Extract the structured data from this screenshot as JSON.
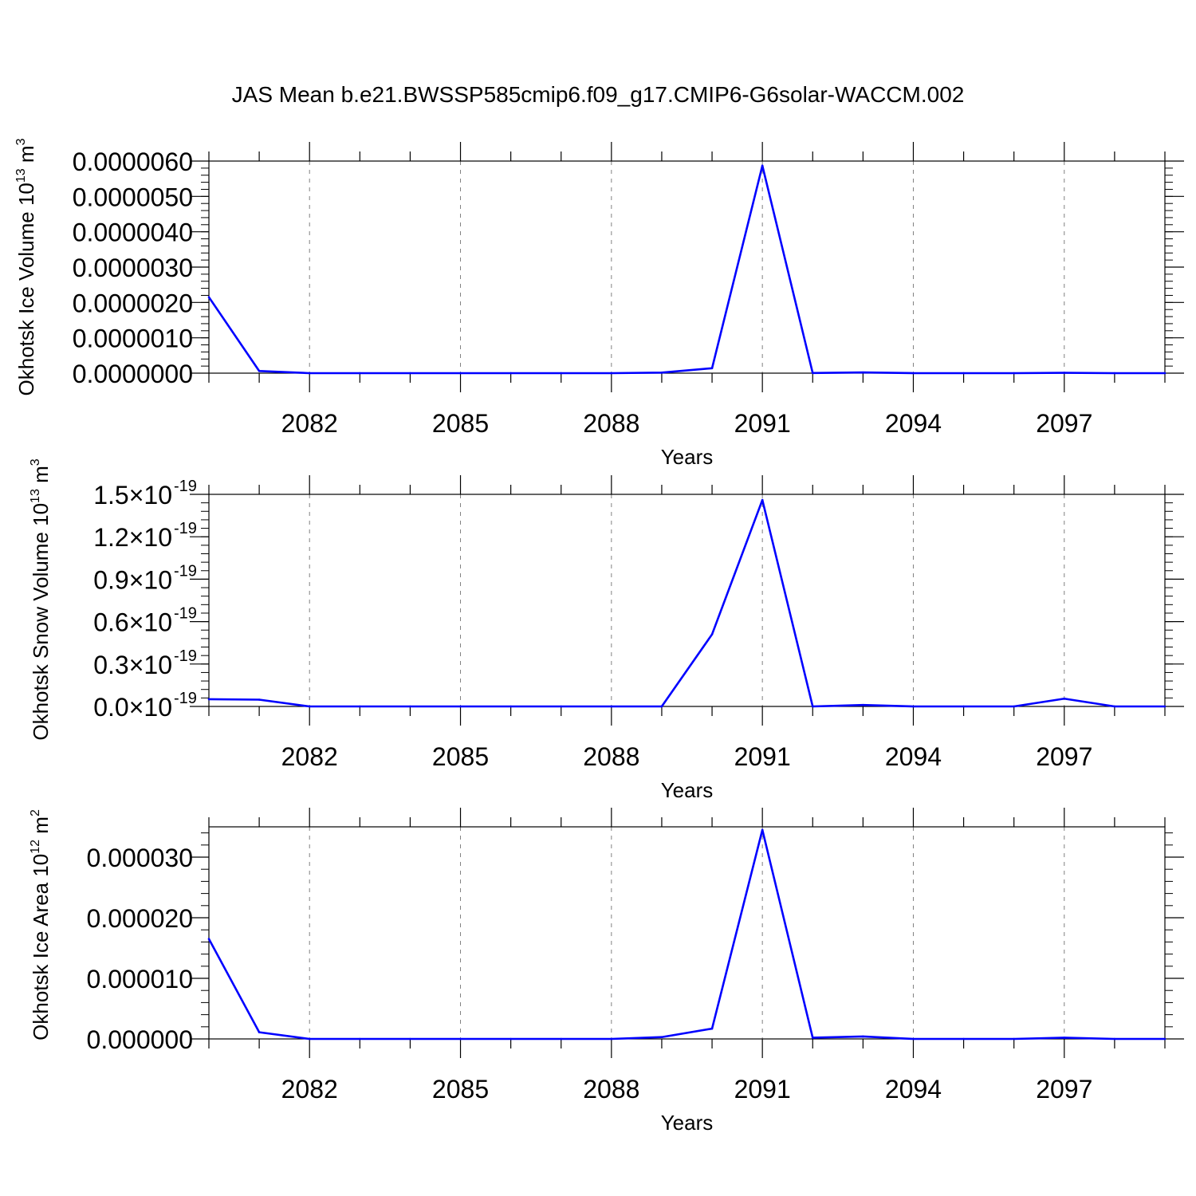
{
  "title": "JAS Mean b.e21.BWSSP585cmip6.f09_g17.CMIP6-G6solar-WACCM.002",
  "colors": {
    "line": "#0000ff",
    "axis": "#000000",
    "grid": "#808080",
    "background": "#ffffff"
  },
  "chart_data": [
    {
      "type": "line",
      "xlabel": "Years",
      "ylabel": {
        "text": "Okhotsk Ice Volume 10",
        "exponent": "13",
        "unit": " m",
        "unit_exponent": "3"
      },
      "xlim": [
        2080,
        2099
      ],
      "ylim": [
        0,
        6e-06
      ],
      "xticks": [
        "2082",
        "2085",
        "2088",
        "2091",
        "2094",
        "2097"
      ],
      "yticks": [
        {
          "value": 0.0,
          "label": "0.0000000"
        },
        {
          "value": 1e-06,
          "label": "0.0000010"
        },
        {
          "value": 2e-06,
          "label": "0.0000020"
        },
        {
          "value": 3e-06,
          "label": "0.0000030"
        },
        {
          "value": 4e-06,
          "label": "0.0000040"
        },
        {
          "value": 5e-06,
          "label": "0.0000050"
        },
        {
          "value": 6e-06,
          "label": "0.0000060"
        }
      ],
      "grid": "vertical dashed at major x ticks",
      "x": [
        2080,
        2081,
        2082,
        2083,
        2084,
        2085,
        2086,
        2087,
        2088,
        2089,
        2090,
        2091,
        2092,
        2093,
        2094,
        2095,
        2096,
        2097,
        2098,
        2099
      ],
      "values": [
        2.15e-06,
        6e-08,
        0.0,
        0.0,
        0.0,
        0.0,
        0.0,
        0.0,
        0.0,
        1.5e-08,
        1.4e-07,
        5.87e-06,
        5e-09,
        2e-08,
        0.0,
        0.0,
        0.0,
        1e-08,
        0.0,
        0.0
      ]
    },
    {
      "type": "line",
      "xlabel": "Years",
      "ylabel": {
        "text": "Okhotsk Snow Volume 10",
        "exponent": "13",
        "unit": " m",
        "unit_exponent": "3"
      },
      "xlim": [
        2080,
        2099
      ],
      "ylim": [
        0,
        1.5e-19
      ],
      "xticks": [
        "2082",
        "2085",
        "2088",
        "2091",
        "2094",
        "2097"
      ],
      "yticks": [
        {
          "value": 0.0,
          "mantissa": "0.0",
          "times": "×",
          "base": "10",
          "exponent": "-19"
        },
        {
          "value": 3e-20,
          "mantissa": "0.3",
          "times": "×",
          "base": "10",
          "exponent": "-19"
        },
        {
          "value": 6e-20,
          "mantissa": "0.6",
          "times": "×",
          "base": "10",
          "exponent": "-19"
        },
        {
          "value": 9e-20,
          "mantissa": "0.9",
          "times": "×",
          "base": "10",
          "exponent": "-19"
        },
        {
          "value": 1.2e-19,
          "mantissa": "1.2",
          "times": "×",
          "base": "10",
          "exponent": "-19"
        },
        {
          "value": 1.5e-19,
          "mantissa": "1.5",
          "times": "×",
          "base": "10",
          "exponent": "-19"
        }
      ],
      "grid": "vertical dashed at major x ticks",
      "x": [
        2080,
        2081,
        2082,
        2083,
        2084,
        2085,
        2086,
        2087,
        2088,
        2089,
        2090,
        2091,
        2092,
        2093,
        2094,
        2095,
        2096,
        2097,
        2098,
        2099
      ],
      "values": [
        5.1e-21,
        4.8e-21,
        0.0,
        0.0,
        0.0,
        0.0,
        0.0,
        0.0,
        0.0,
        0.0,
        5.1e-20,
        1.46e-19,
        0.0,
        1e-21,
        0.0,
        0.0,
        0.0,
        5.5e-21,
        0.0,
        0.0
      ]
    },
    {
      "type": "line",
      "xlabel": "Years",
      "ylabel": {
        "text": "Okhotsk Ice Area 10",
        "exponent": "12",
        "unit": " m",
        "unit_exponent": "2"
      },
      "xlim": [
        2080,
        2099
      ],
      "ylim": [
        0,
        3.5e-05
      ],
      "xticks": [
        "2082",
        "2085",
        "2088",
        "2091",
        "2094",
        "2097"
      ],
      "yticks": [
        {
          "value": 0.0,
          "label": "0.000000"
        },
        {
          "value": 1e-05,
          "label": "0.000010"
        },
        {
          "value": 2e-05,
          "label": "0.000020"
        },
        {
          "value": 3e-05,
          "label": "0.000030"
        }
      ],
      "grid": "vertical dashed at major x ticks",
      "x": [
        2080,
        2081,
        2082,
        2083,
        2084,
        2085,
        2086,
        2087,
        2088,
        2089,
        2090,
        2091,
        2092,
        2093,
        2094,
        2095,
        2096,
        2097,
        2098,
        2099
      ],
      "values": [
        1.65e-05,
        1.1e-06,
        0.0,
        0.0,
        0.0,
        0.0,
        0.0,
        0.0,
        0.0,
        3e-07,
        1.7e-06,
        3.45e-05,
        2e-07,
        4e-07,
        0.0,
        0.0,
        0.0,
        2e-07,
        0.0,
        0.0
      ]
    }
  ]
}
